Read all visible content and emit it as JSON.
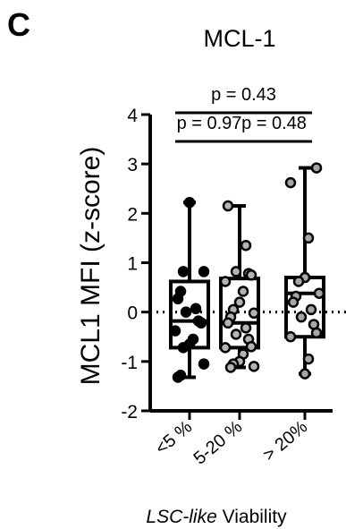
{
  "panel_letter": "C",
  "chart_data": {
    "type": "box",
    "title": "MCL-1",
    "ylabel": "MCL1 MFI (z-score)",
    "xlabel_italic": "LSC-like",
    "xlabel_rest": " Viability",
    "ylim": [
      -2,
      4
    ],
    "yticks": [
      -2,
      -1,
      0,
      1,
      2,
      3,
      4
    ],
    "categories": [
      "<5 %",
      "5-20 %",
      "> 20%"
    ],
    "reference_line": {
      "y": 0,
      "style": "dotted"
    },
    "groups": [
      {
        "name": "<5 %",
        "marker_color": "#000000",
        "box": {
          "min": -1.32,
          "q1": -0.72,
          "median": -0.18,
          "q3": 0.62,
          "max": 2.22
        },
        "points": [
          2.22,
          0.82,
          0.82,
          0.42,
          0.27,
          0.07,
          0.0,
          -0.18,
          -0.22,
          -0.38,
          -0.55,
          -0.65,
          -0.72,
          -1.05,
          -1.28,
          -1.32
        ]
      },
      {
        "name": "5-20 %",
        "marker_color": "#b3b3b3",
        "box": {
          "min": -1.12,
          "q1": -0.72,
          "median": -0.22,
          "q3": 0.68,
          "max": 2.15
        },
        "points": [
          2.15,
          1.35,
          0.82,
          0.78,
          0.75,
          0.62,
          0.42,
          0.2,
          0.05,
          -0.02,
          -0.1,
          -0.22,
          -0.32,
          -0.45,
          -0.55,
          -0.7,
          -0.72,
          -0.85,
          -1.0,
          -1.05,
          -1.1,
          -1.12
        ]
      },
      {
        "name": "> 20%",
        "marker_color": "#a6a6a6",
        "box": {
          "min": -1.25,
          "q1": -0.5,
          "median": 0.38,
          "q3": 0.7,
          "max": 2.92
        },
        "points": [
          2.92,
          2.62,
          1.5,
          0.7,
          0.62,
          0.38,
          0.32,
          0.2,
          0.05,
          -0.1,
          -0.25,
          -0.42,
          -0.5,
          -0.95,
          -1.25
        ]
      }
    ],
    "comparisons": [
      {
        "label": "p = 0.43",
        "from": 0,
        "to": 2
      },
      {
        "label": "p = 0.97",
        "from": 0,
        "to": 1
      },
      {
        "label": "p = 0.48",
        "from": 1,
        "to": 2
      }
    ]
  }
}
